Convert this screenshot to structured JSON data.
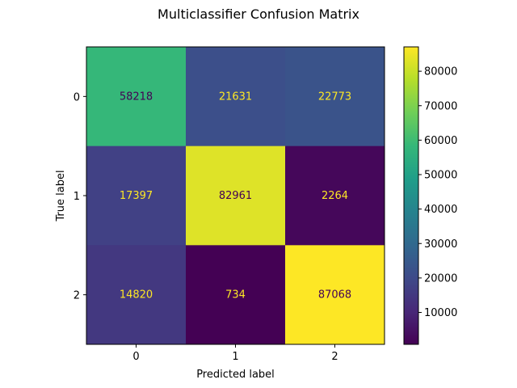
{
  "chart_data": {
    "type": "heatmap",
    "title": "Multiclassifier Confusion Matrix",
    "xlabel": "Predicted label",
    "ylabel": "True label",
    "x_categories": [
      "0",
      "1",
      "2"
    ],
    "y_categories": [
      "0",
      "1",
      "2"
    ],
    "matrix": [
      [
        58218,
        21631,
        22773
      ],
      [
        17397,
        82961,
        2264
      ],
      [
        14820,
        734,
        87068
      ]
    ],
    "colormap": "viridis",
    "colorbar": {
      "ticks": [
        "10000",
        "20000",
        "30000",
        "40000",
        "50000",
        "60000",
        "70000",
        "80000"
      ],
      "range": [
        734,
        87068
      ]
    },
    "annotation_colors": {
      "on_dark": "#fde725",
      "on_light": "#440154"
    }
  }
}
